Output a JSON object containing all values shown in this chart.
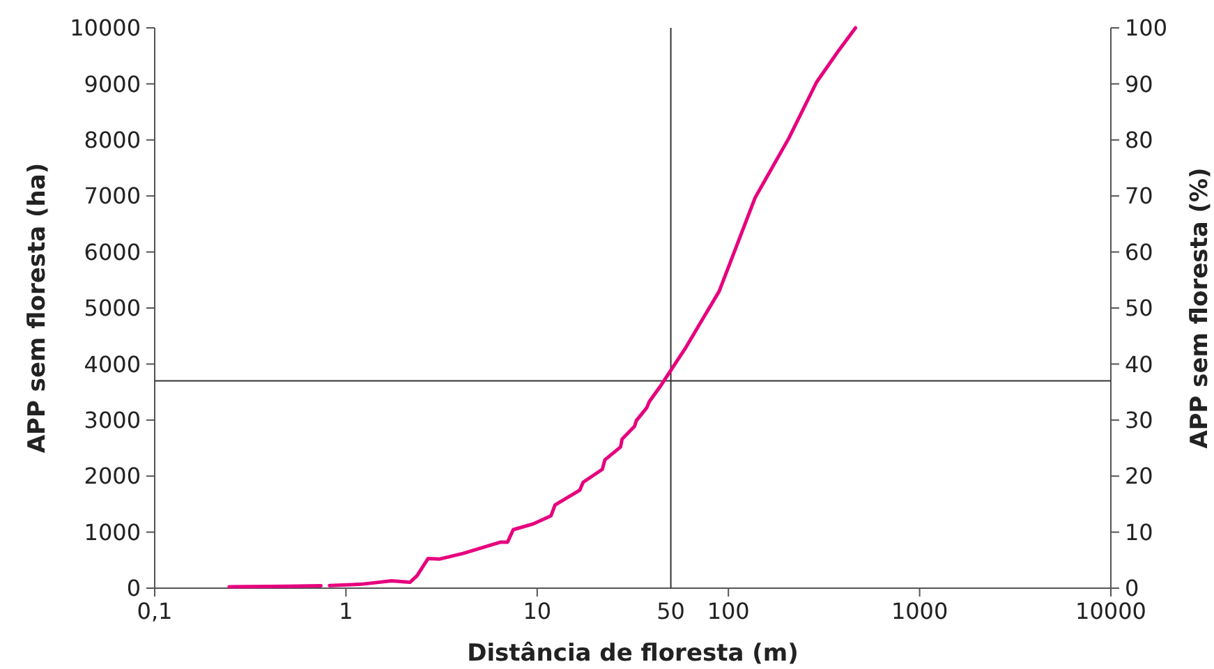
{
  "chart_data": {
    "type": "line",
    "xlabel": "Distância de floresta (m)",
    "ylabel": "APP sem floresta (ha)",
    "y2label": "APP sem floresta (%)",
    "log": "x",
    "grid": false,
    "marker": "none",
    "line_style": "solid",
    "xlim": [
      0.1,
      10000
    ],
    "xticks": [
      {
        "value": 0.1,
        "label": "0,1"
      },
      1,
      10,
      100,
      1000,
      10000
    ],
    "ylim": [
      0,
      10000
    ],
    "yticks": [
      0,
      1000,
      2000,
      3000,
      4000,
      5000,
      6000,
      7000,
      8000,
      9000,
      10000
    ],
    "y2lim": [
      0,
      100
    ],
    "y2ticks": [
      0,
      10,
      20,
      30,
      40,
      50,
      60,
      70,
      80,
      90,
      100
    ],
    "ref_lines": [
      {
        "axis": "x",
        "value": 50,
        "label": "50",
        "color": "#333333"
      },
      {
        "axis": "y",
        "value": 3700,
        "color": "#333333"
      }
    ],
    "series": [
      {
        "color": "#e6007e",
        "x": [
          0.245,
          0.5,
          0.74,
          0.78,
          0.82,
          1.2,
          1.73,
          2.16,
          2.35,
          2.69,
          3.1,
          4.1,
          6.4,
          7,
          7.5,
          9.5,
          11.8,
          12.4,
          16.7,
          17.4,
          21.9,
          22.6,
          27.3,
          27.8,
          32.3,
          33,
          37.4,
          38.6,
          44,
          60,
          89.5,
          138,
          207,
          289,
          378,
          462
        ],
        "values": [
          25,
          35,
          45,
          null,
          48,
          70,
          130,
          105,
          220,
          530,
          520,
          620,
          820,
          820,
          1045,
          1145,
          1290,
          1485,
          1750,
          1890,
          2120,
          2290,
          2520,
          2660,
          2890,
          2990,
          3220,
          3330,
          3600,
          4300,
          5300,
          6970,
          8030,
          9030,
          9600,
          10000
        ]
      }
    ]
  }
}
